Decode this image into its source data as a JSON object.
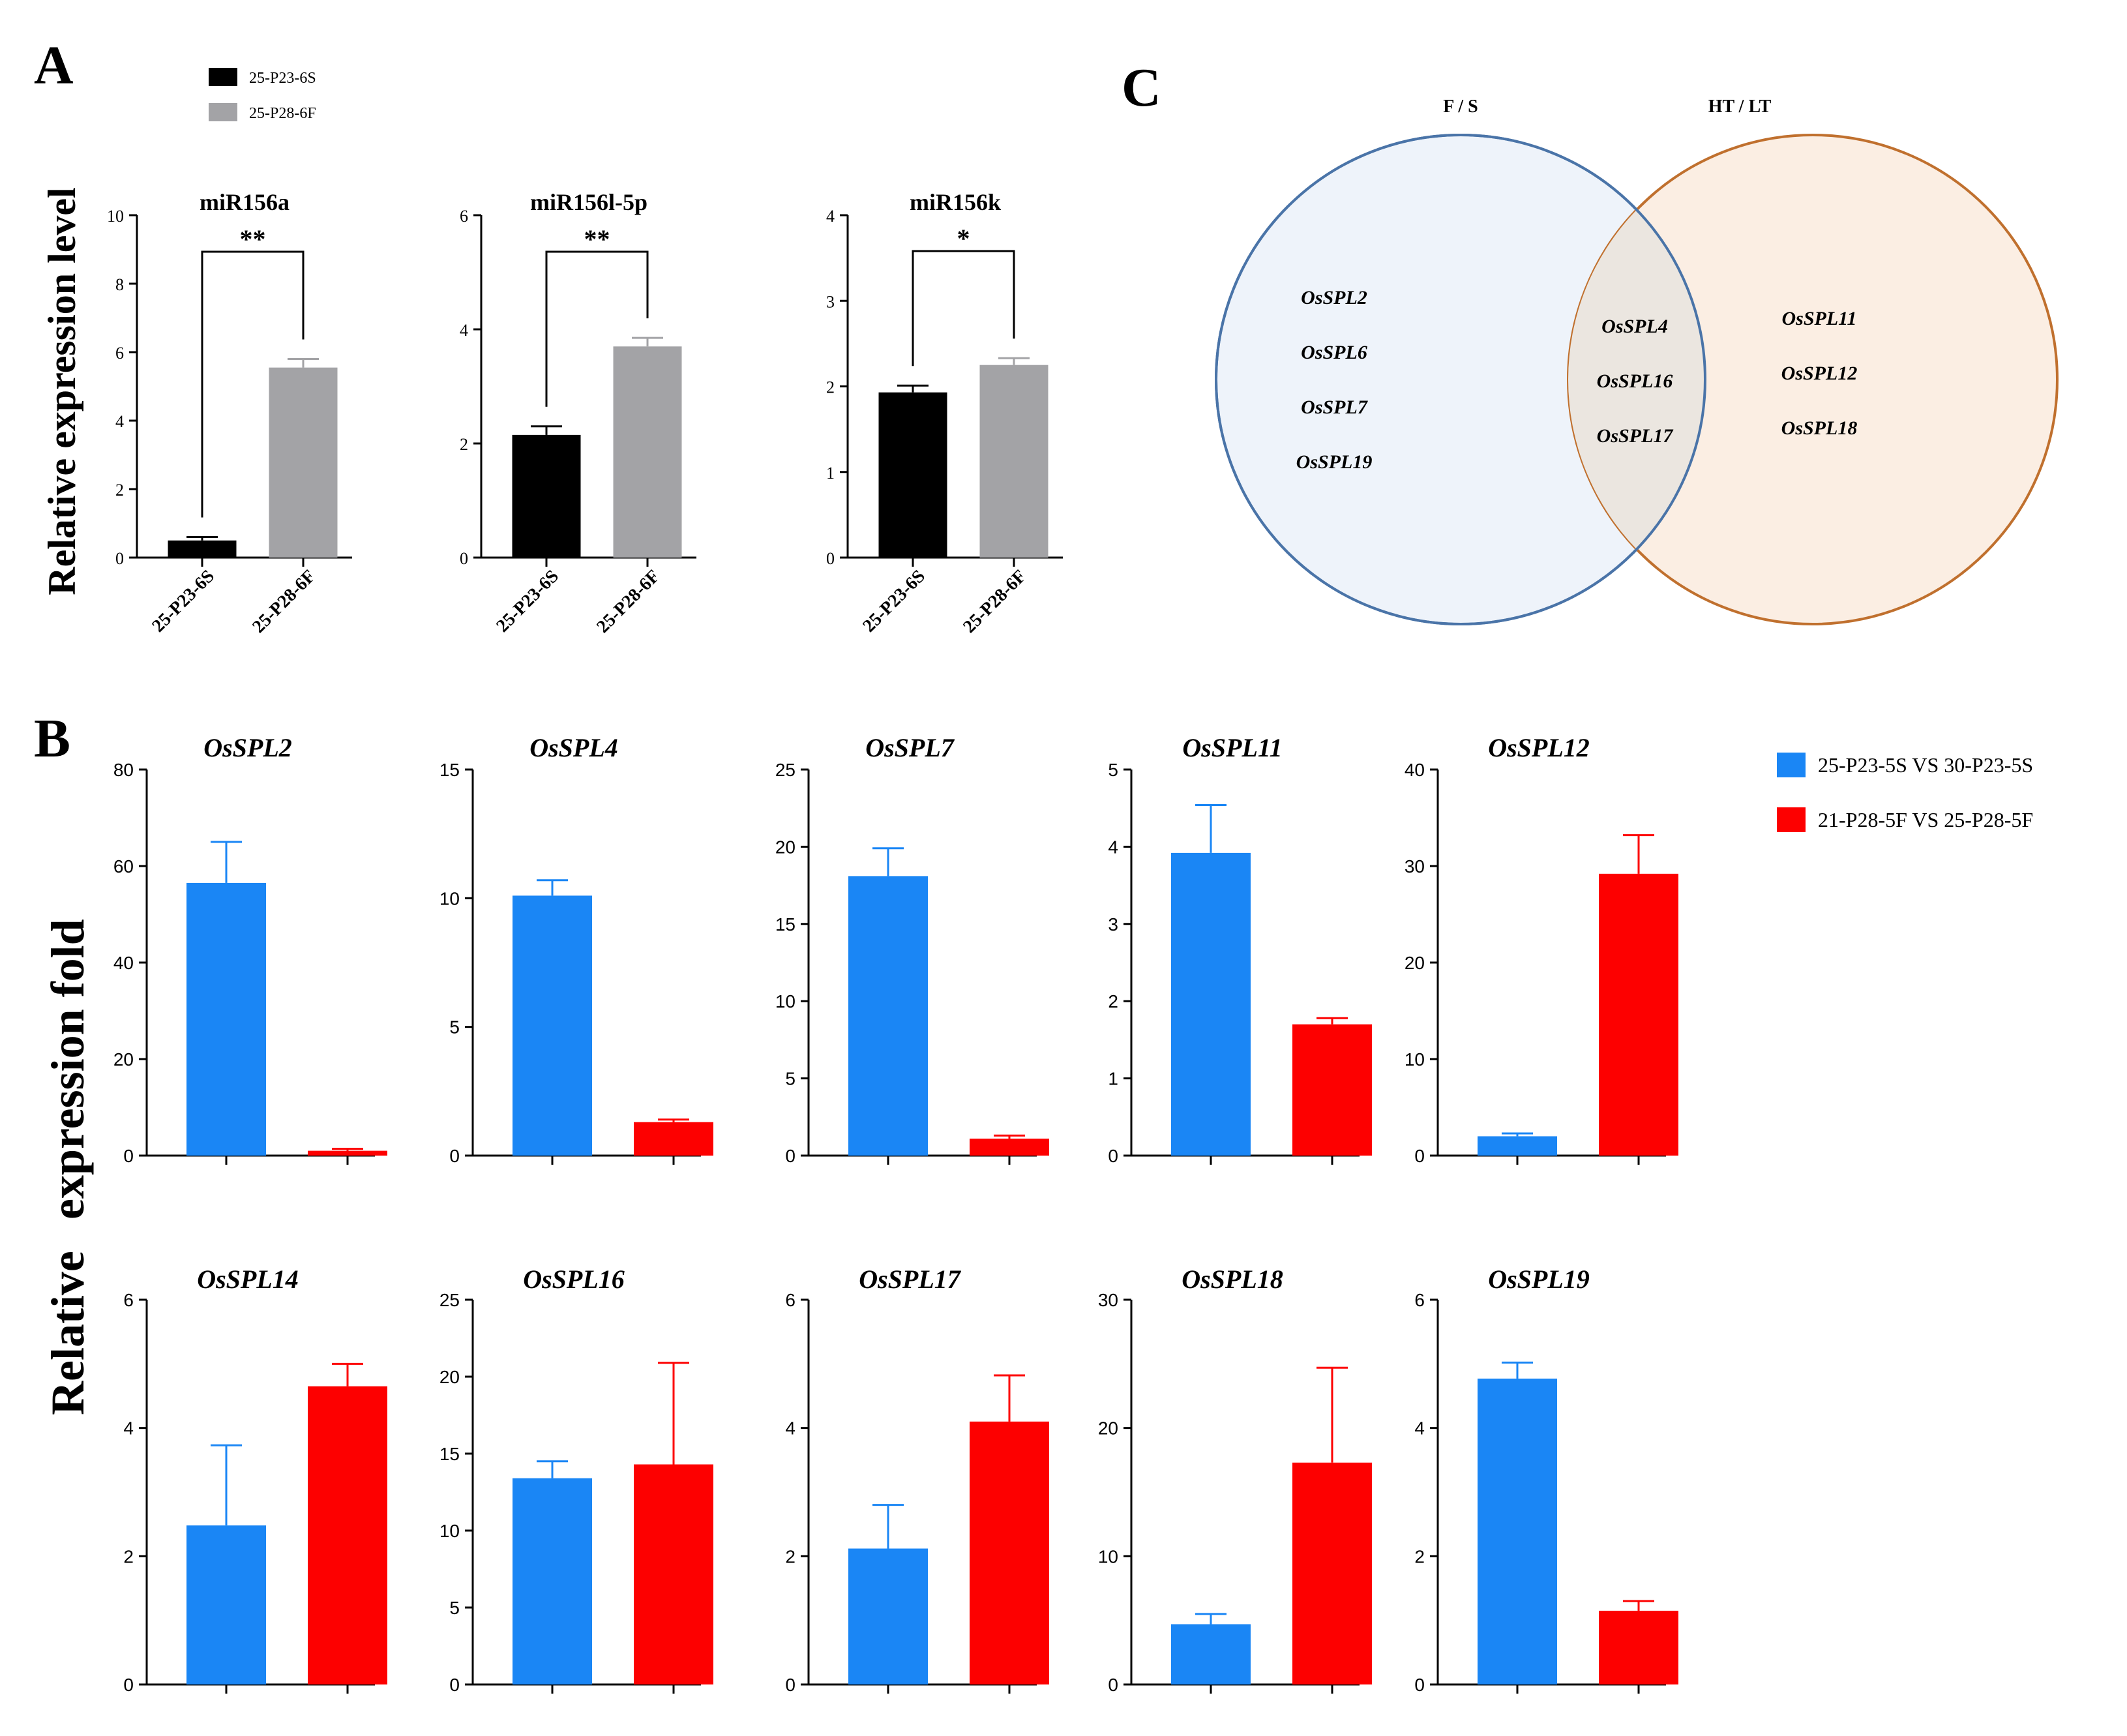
{
  "panel_labels": {
    "a": "A",
    "b": "B",
    "c": "C"
  },
  "colors": {
    "s_bar": "#000000",
    "f_bar": "#a3a3a6",
    "blue": "#1a86f5",
    "red": "#fd0000",
    "fs_circle": "#4a74a8",
    "htlt_circle": "#c0702e",
    "fs_fill": "#eef3fa",
    "htlt_fill": "#fbeee3",
    "overlap_fill": "#ebe6e0"
  },
  "chart_data": [
    {
      "type": "bar",
      "panel": "A",
      "title": "miR156a",
      "categories": [
        "25-P23-6S",
        "25-P28-6F"
      ],
      "values": [
        0.5,
        5.55
      ],
      "errors": [
        0.1,
        0.25
      ],
      "ylim": [
        0,
        10
      ],
      "yticks": [
        "0",
        "2",
        "4",
        "6",
        "8",
        "10"
      ],
      "significance": "**",
      "ylabel": "Relative expression level"
    },
    {
      "type": "bar",
      "panel": "A",
      "title": "miR156l-5p",
      "categories": [
        "25-P23-6S",
        "25-P28-6F"
      ],
      "values": [
        2.15,
        3.7
      ],
      "errors": [
        0.15,
        0.15
      ],
      "ylim": [
        0,
        6
      ],
      "yticks": [
        "0",
        "2",
        "4",
        "6"
      ],
      "significance": "**"
    },
    {
      "type": "bar",
      "panel": "A",
      "title": "miR156k",
      "categories": [
        "25-P23-6S",
        "25-P28-6F"
      ],
      "values": [
        1.93,
        2.25
      ],
      "errors": [
        0.08,
        0.08
      ],
      "ylim": [
        0,
        4
      ],
      "yticks": [
        "0",
        "1",
        "2",
        "3",
        "4"
      ],
      "significance": "*"
    },
    {
      "type": "bar",
      "panel": "B",
      "title": "OsSPL2",
      "series": [
        {
          "name": "25-P23-5S VS 30-P23-5S",
          "values": [
            56.5
          ],
          "errors": [
            8.5
          ]
        },
        {
          "name": "21-P28-5F VS 25-P28-5F",
          "values": [
            1.0
          ],
          "errors": [
            0.4
          ]
        }
      ],
      "ylim": [
        0,
        80
      ],
      "yticks": [
        "0",
        "20",
        "40",
        "60",
        "80"
      ]
    },
    {
      "type": "bar",
      "panel": "B",
      "title": "OsSPL4",
      "series": [
        {
          "name": "25-P23-5S VS 30-P23-5S",
          "values": [
            10.1
          ],
          "errors": [
            0.6
          ]
        },
        {
          "name": "21-P28-5F VS 25-P28-5F",
          "values": [
            1.3
          ],
          "errors": [
            0.1
          ]
        }
      ],
      "ylim": [
        0,
        15
      ],
      "yticks": [
        "0",
        "5",
        "10",
        "15"
      ]
    },
    {
      "type": "bar",
      "panel": "B",
      "title": "OsSPL7",
      "series": [
        {
          "name": "25-P23-5S VS 30-P23-5S",
          "values": [
            18.1
          ],
          "errors": [
            1.8
          ]
        },
        {
          "name": "21-P28-5F VS 25-P28-5F",
          "values": [
            1.1
          ],
          "errors": [
            0.2
          ]
        }
      ],
      "ylim": [
        0,
        25
      ],
      "yticks": [
        "0",
        "5",
        "10",
        "15",
        "20",
        "25"
      ]
    },
    {
      "type": "bar",
      "panel": "B",
      "title": "OsSPL11",
      "series": [
        {
          "name": "25-P23-5S VS 30-P23-5S",
          "values": [
            3.92
          ],
          "errors": [
            0.62
          ]
        },
        {
          "name": "21-P28-5F VS 25-P28-5F",
          "values": [
            1.7
          ],
          "errors": [
            0.08
          ]
        }
      ],
      "ylim": [
        0,
        5
      ],
      "yticks": [
        "0",
        "1",
        "2",
        "3",
        "4",
        "5"
      ]
    },
    {
      "type": "bar",
      "panel": "B",
      "title": "OsSPL12",
      "series": [
        {
          "name": "25-P23-5S VS 30-P23-5S",
          "values": [
            2.0
          ],
          "errors": [
            0.3
          ]
        },
        {
          "name": "21-P28-5F VS 25-P28-5F",
          "values": [
            29.2
          ],
          "errors": [
            4.0
          ]
        }
      ],
      "ylim": [
        0,
        40
      ],
      "yticks": [
        "0",
        "10",
        "20",
        "30",
        "40"
      ]
    },
    {
      "type": "bar",
      "panel": "B",
      "title": "OsSPL14",
      "series": [
        {
          "name": "25-P23-5S VS 30-P23-5S",
          "values": [
            2.48
          ],
          "errors": [
            1.25
          ]
        },
        {
          "name": "21-P28-5F VS 25-P28-5F",
          "values": [
            4.65
          ],
          "errors": [
            0.35
          ]
        }
      ],
      "ylim": [
        0,
        6
      ],
      "yticks": [
        "0",
        "2",
        "4",
        "6"
      ]
    },
    {
      "type": "bar",
      "panel": "B",
      "title": "OsSPL16",
      "series": [
        {
          "name": "25-P23-5S VS 30-P23-5S",
          "values": [
            13.4
          ],
          "errors": [
            1.1
          ]
        },
        {
          "name": "21-P28-5F VS 25-P28-5F",
          "values": [
            14.3
          ],
          "errors": [
            6.6
          ]
        }
      ],
      "ylim": [
        0,
        25
      ],
      "yticks": [
        "0",
        "5",
        "10",
        "15",
        "20",
        "25"
      ]
    },
    {
      "type": "bar",
      "panel": "B",
      "title": "OsSPL17",
      "series": [
        {
          "name": "25-P23-5S VS 30-P23-5S",
          "values": [
            2.12
          ],
          "errors": [
            0.68
          ]
        },
        {
          "name": "21-P28-5F VS 25-P28-5F",
          "values": [
            4.1
          ],
          "errors": [
            0.72
          ]
        }
      ],
      "ylim": [
        0,
        6
      ],
      "yticks": [
        "0",
        "2",
        "4",
        "6"
      ]
    },
    {
      "type": "bar",
      "panel": "B",
      "title": "OsSPL18",
      "series": [
        {
          "name": "25-P23-5S VS 30-P23-5S",
          "values": [
            4.7
          ],
          "errors": [
            0.8
          ]
        },
        {
          "name": "21-P28-5F VS 25-P28-5F",
          "values": [
            17.3
          ],
          "errors": [
            7.4
          ]
        }
      ],
      "ylim": [
        0,
        30
      ],
      "yticks": [
        "0",
        "10",
        "20",
        "30"
      ]
    },
    {
      "type": "bar",
      "panel": "B",
      "title": "OsSPL19",
      "series": [
        {
          "name": "25-P23-5S VS 30-P23-5S",
          "values": [
            4.77
          ],
          "errors": [
            0.25
          ]
        },
        {
          "name": "21-P28-5F VS 25-P28-5F",
          "values": [
            1.15
          ],
          "errors": [
            0.15
          ]
        }
      ],
      "ylim": [
        0,
        6
      ],
      "yticks": [
        "0",
        "2",
        "4",
        "6"
      ]
    }
  ],
  "panel_a_legend": [
    "25-P23-6S",
    "25-P28-6F"
  ],
  "panel_b_legend": [
    "25-P23-5S VS 30-P23-5S",
    "21-P28-5F VS 25-P28-5F"
  ],
  "panel_b_ylabel": {
    "line1": "Relative",
    "line2": "expression fold"
  },
  "venn": {
    "left_title": "F / S",
    "right_title": "HT / LT",
    "left_only": [
      "OsSPL2",
      "OsSPL6",
      "OsSPL7",
      "OsSPL19"
    ],
    "shared": [
      "OsSPL4",
      "OsSPL16",
      "OsSPL17"
    ],
    "right_only": [
      "OsSPL11",
      "OsSPL12",
      "OsSPL18"
    ]
  }
}
